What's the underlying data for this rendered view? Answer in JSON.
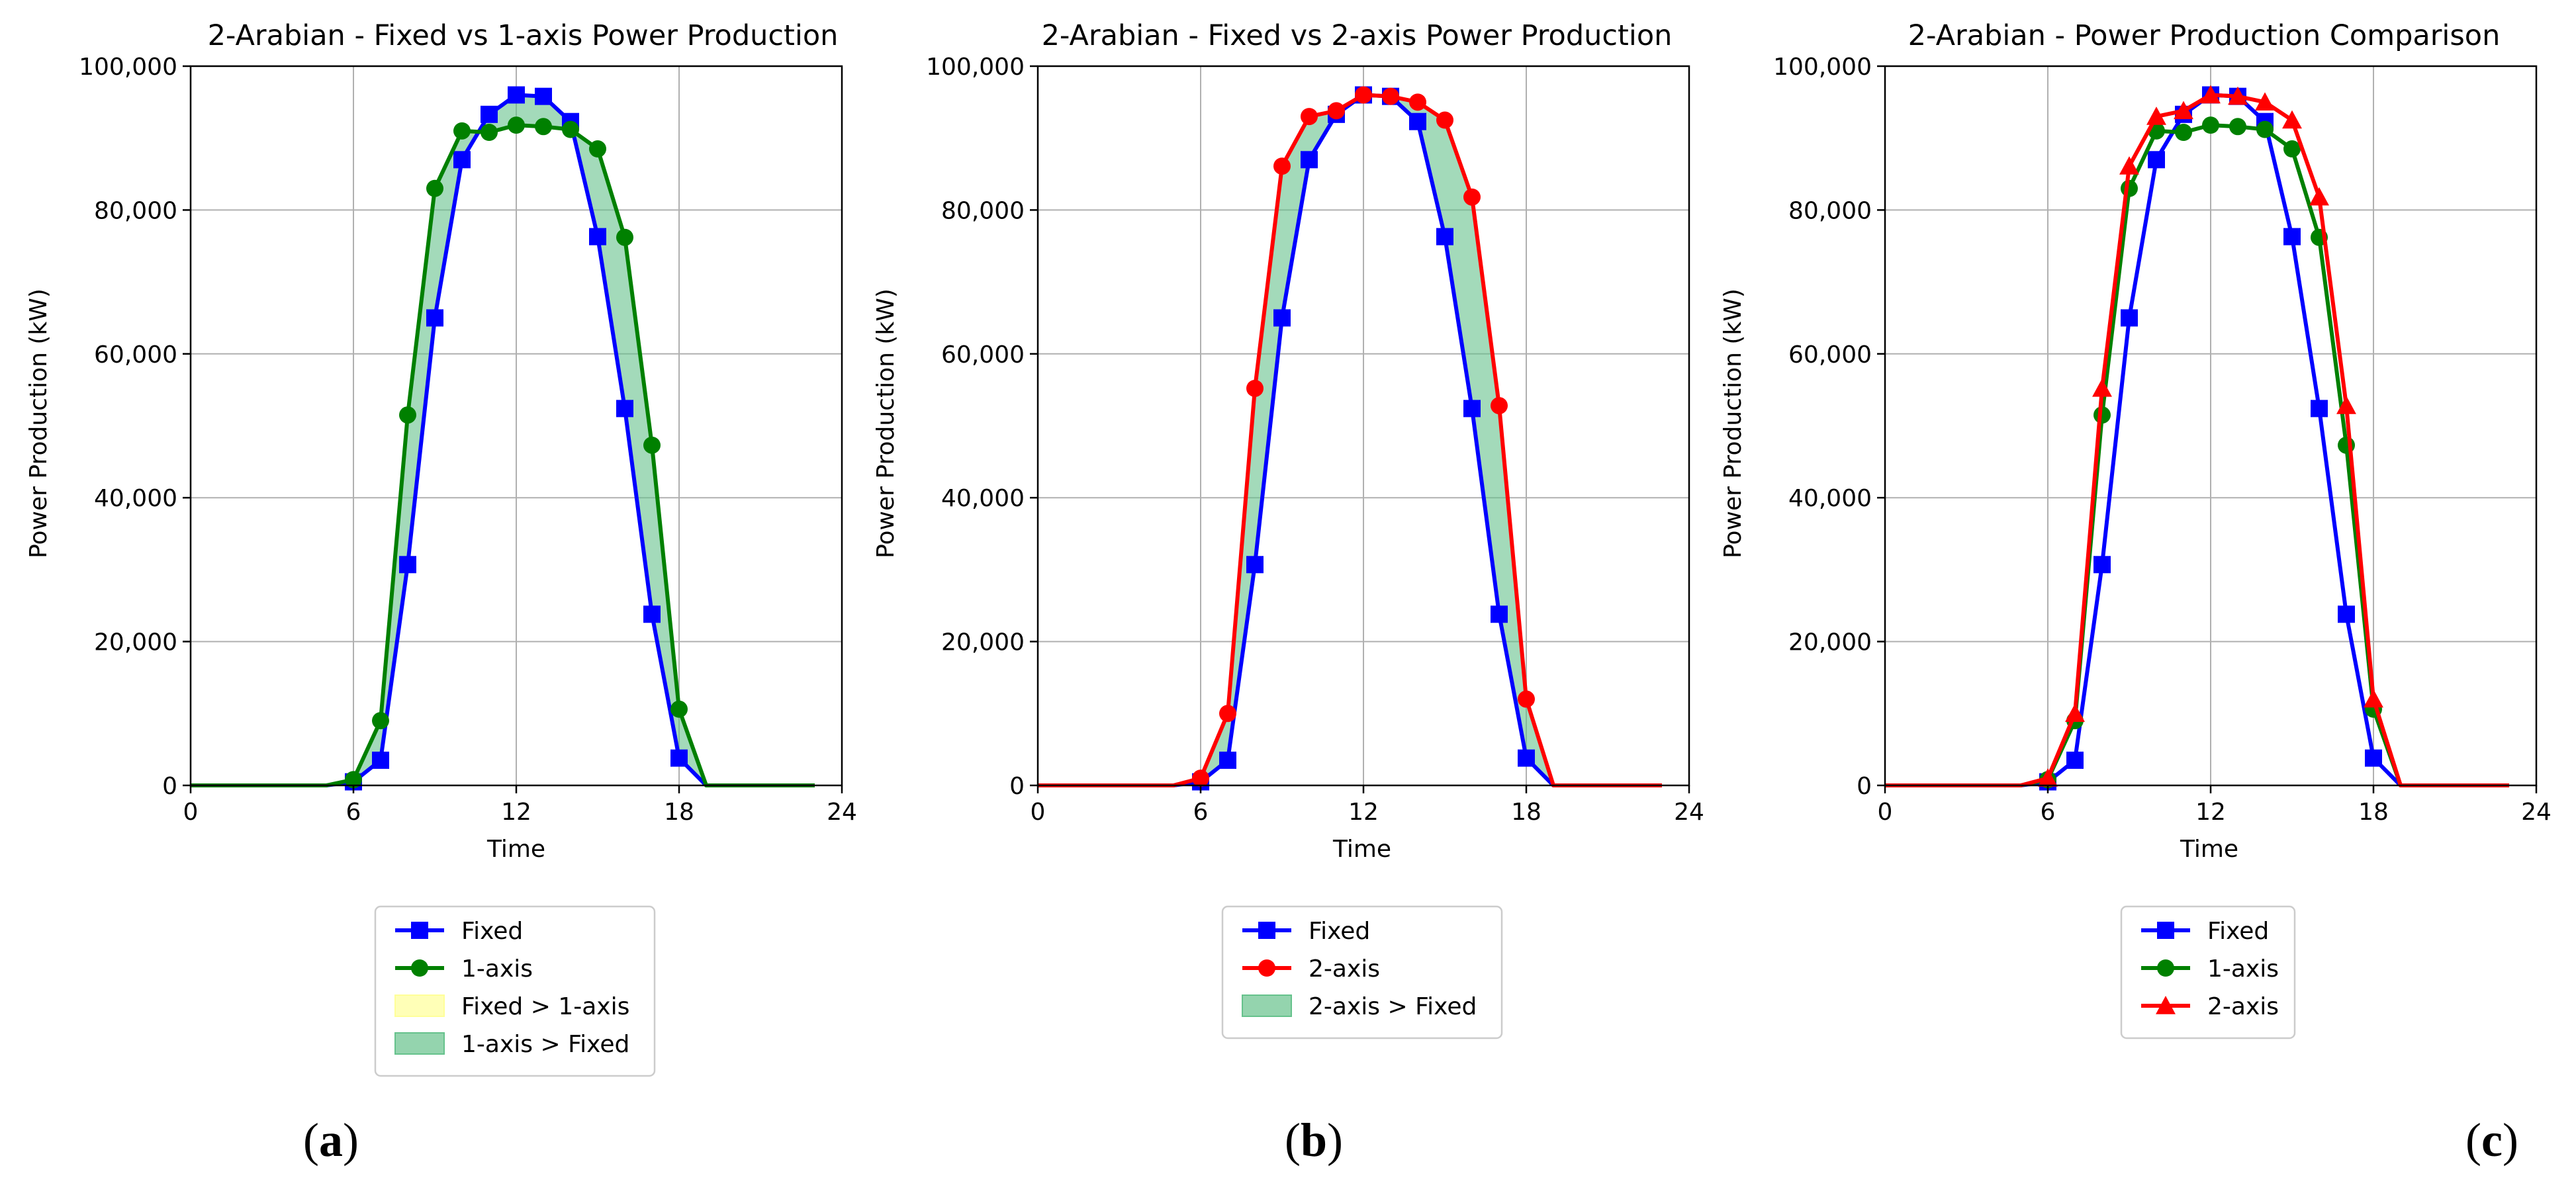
{
  "figure": {
    "panel_labels": [
      "a",
      "b",
      "c"
    ]
  },
  "chart_data": [
    {
      "type": "line",
      "title": "2-Arabian - Fixed vs 1-axis Power Production",
      "xlabel": "Time",
      "ylabel": "Power Production (kW)",
      "xlim": [
        0,
        24
      ],
      "ylim": [
        0,
        100000
      ],
      "xticks": [
        "0",
        "6",
        "12",
        "18",
        "24"
      ],
      "yticks": [
        "0",
        "20,000",
        "40,000",
        "60,000",
        "80,000",
        "100,000"
      ],
      "grid": true,
      "legend_placement": "below",
      "x": [
        0,
        1,
        2,
        3,
        4,
        5,
        6,
        7,
        8,
        9,
        10,
        11,
        12,
        13,
        14,
        15,
        16,
        17,
        18,
        19,
        20,
        21,
        22,
        23
      ],
      "series": [
        {
          "name": "Fixed",
          "color": "#0000ff",
          "marker": "square",
          "values": [
            0,
            0,
            0,
            0,
            0,
            0,
            500,
            3500,
            30700,
            65000,
            87000,
            93300,
            96000,
            95800,
            92300,
            76300,
            52400,
            23800,
            3800,
            0,
            0,
            0,
            0,
            0
          ]
        },
        {
          "name": "1-axis",
          "color": "#008000",
          "marker": "circle",
          "values": [
            0,
            0,
            0,
            0,
            0,
            0,
            800,
            9000,
            51500,
            83000,
            91000,
            90800,
            91800,
            91600,
            91200,
            88500,
            76200,
            47300,
            10600,
            0,
            0,
            0,
            0,
            0
          ]
        }
      ],
      "fills": [
        {
          "name": "Fixed > 1-axis",
          "color": "#ffff99"
        },
        {
          "name": "1-axis > Fixed",
          "color": "#66c28c"
        }
      ],
      "legend": [
        {
          "label": "Fixed",
          "kind": "line",
          "color": "#0000ff",
          "marker": "square"
        },
        {
          "label": "1-axis",
          "kind": "line",
          "color": "#008000",
          "marker": "circle"
        },
        {
          "label": "Fixed > 1-axis",
          "kind": "patch",
          "color": "#ffff99"
        },
        {
          "label": "1-axis > Fixed",
          "kind": "patch",
          "color": "#66c28c"
        }
      ]
    },
    {
      "type": "line",
      "title": "2-Arabian - Fixed vs 2-axis Power Production",
      "xlabel": "Time",
      "ylabel": "Power Production (kW)",
      "xlim": [
        0,
        24
      ],
      "ylim": [
        0,
        100000
      ],
      "xticks": [
        "0",
        "6",
        "12",
        "18",
        "24"
      ],
      "yticks": [
        "0",
        "20,000",
        "40,000",
        "60,000",
        "80,000",
        "100,000"
      ],
      "grid": true,
      "legend_placement": "below",
      "x": [
        0,
        1,
        2,
        3,
        4,
        5,
        6,
        7,
        8,
        9,
        10,
        11,
        12,
        13,
        14,
        15,
        16,
        17,
        18,
        19,
        20,
        21,
        22,
        23
      ],
      "series": [
        {
          "name": "Fixed",
          "color": "#0000ff",
          "marker": "square",
          "values": [
            0,
            0,
            0,
            0,
            0,
            0,
            500,
            3500,
            30700,
            65000,
            87000,
            93300,
            96000,
            95800,
            92300,
            76300,
            52400,
            23800,
            3800,
            0,
            0,
            0,
            0,
            0
          ]
        },
        {
          "name": "2-axis",
          "color": "#ff0000",
          "marker": "circle",
          "values": [
            0,
            0,
            0,
            0,
            0,
            0,
            1000,
            10000,
            55200,
            86100,
            93000,
            93800,
            96000,
            95800,
            95000,
            92500,
            81800,
            52800,
            12000,
            0,
            0,
            0,
            0,
            0
          ]
        }
      ],
      "fills": [
        {
          "name": "2-axis > Fixed",
          "color": "#66c28c"
        }
      ],
      "legend": [
        {
          "label": "Fixed",
          "kind": "line",
          "color": "#0000ff",
          "marker": "square"
        },
        {
          "label": "2-axis",
          "kind": "line",
          "color": "#ff0000",
          "marker": "circle"
        },
        {
          "label": "2-axis > Fixed",
          "kind": "patch",
          "color": "#66c28c"
        }
      ]
    },
    {
      "type": "line",
      "title": "2-Arabian - Power Production Comparison",
      "xlabel": "Time",
      "ylabel": "Power Production (kW)",
      "xlim": [
        0,
        24
      ],
      "ylim": [
        0,
        100000
      ],
      "xticks": [
        "0",
        "6",
        "12",
        "18",
        "24"
      ],
      "yticks": [
        "0",
        "20,000",
        "40,000",
        "60,000",
        "80,000",
        "100,000"
      ],
      "grid": true,
      "legend_placement": "below",
      "x": [
        0,
        1,
        2,
        3,
        4,
        5,
        6,
        7,
        8,
        9,
        10,
        11,
        12,
        13,
        14,
        15,
        16,
        17,
        18,
        19,
        20,
        21,
        22,
        23
      ],
      "series": [
        {
          "name": "Fixed",
          "color": "#0000ff",
          "marker": "square",
          "values": [
            0,
            0,
            0,
            0,
            0,
            0,
            500,
            3500,
            30700,
            65000,
            87000,
            93300,
            96000,
            95800,
            92300,
            76300,
            52400,
            23800,
            3800,
            0,
            0,
            0,
            0,
            0
          ]
        },
        {
          "name": "1-axis",
          "color": "#008000",
          "marker": "circle",
          "values": [
            0,
            0,
            0,
            0,
            0,
            0,
            800,
            9000,
            51500,
            83000,
            91000,
            90800,
            91800,
            91600,
            91200,
            88500,
            76200,
            47300,
            10600,
            0,
            0,
            0,
            0,
            0
          ]
        },
        {
          "name": "2-axis",
          "color": "#ff0000",
          "marker": "triangle",
          "values": [
            0,
            0,
            0,
            0,
            0,
            0,
            1000,
            10000,
            55200,
            86100,
            93000,
            93800,
            96000,
            95800,
            95000,
            92500,
            81800,
            52800,
            12000,
            0,
            0,
            0,
            0,
            0
          ]
        }
      ],
      "fills": [],
      "legend": [
        {
          "label": "Fixed",
          "kind": "line",
          "color": "#0000ff",
          "marker": "square"
        },
        {
          "label": "1-axis",
          "kind": "line",
          "color": "#008000",
          "marker": "circle"
        },
        {
          "label": "2-axis",
          "kind": "line",
          "color": "#ff0000",
          "marker": "triangle"
        }
      ]
    }
  ]
}
